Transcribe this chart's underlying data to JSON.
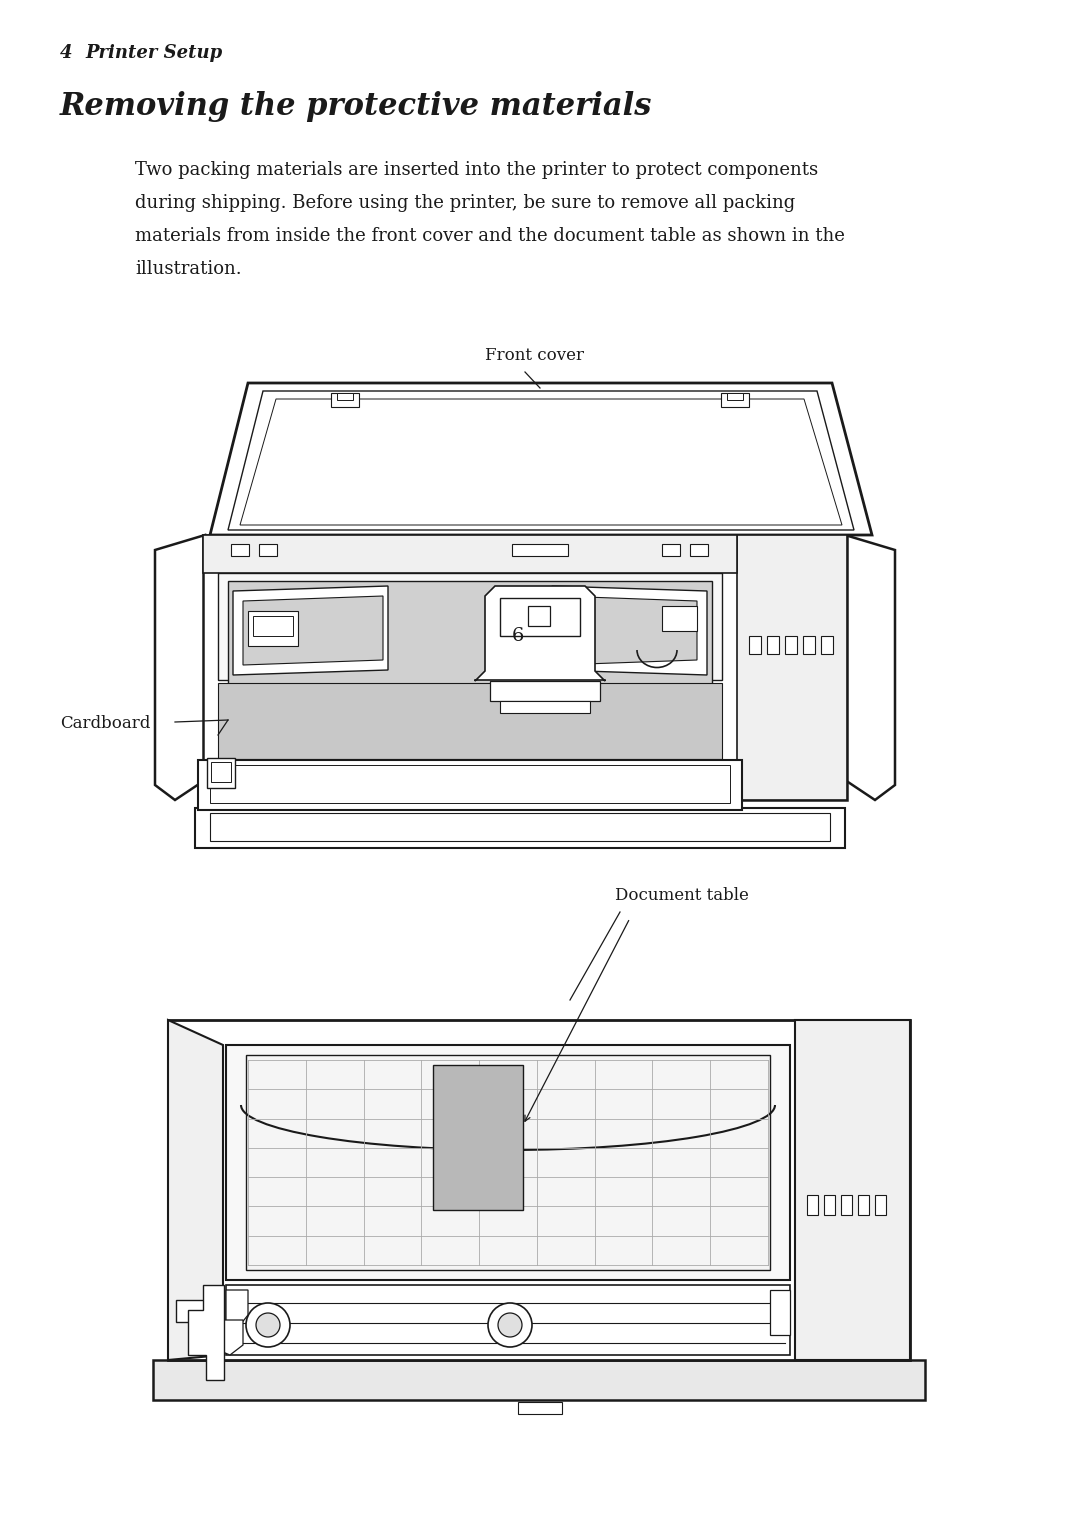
{
  "bg_color": "#ffffff",
  "page_width": 10.8,
  "page_height": 15.29,
  "header_number": "4",
  "header_text": "Printer Setup",
  "title": "Removing the protective materials",
  "body_line1": "Two packing materials are inserted into the printer to protect components",
  "body_line2": "during shipping. Before using the printer, be sure to remove all packing",
  "body_line3": "materials from inside the front cover and the document table as shown in the",
  "body_line4": "illustration.",
  "label_front_cover": "Front cover",
  "label_cardboard": "Cardboard",
  "label_document_table": "Document table",
  "text_color": "#1a1a1a",
  "line_color": "#1a1a1a",
  "gray_fill": "#b8b8b8",
  "light_gray": "#d0d0d0",
  "med_gray": "#c8c8c8",
  "dark_gray": "#808080"
}
